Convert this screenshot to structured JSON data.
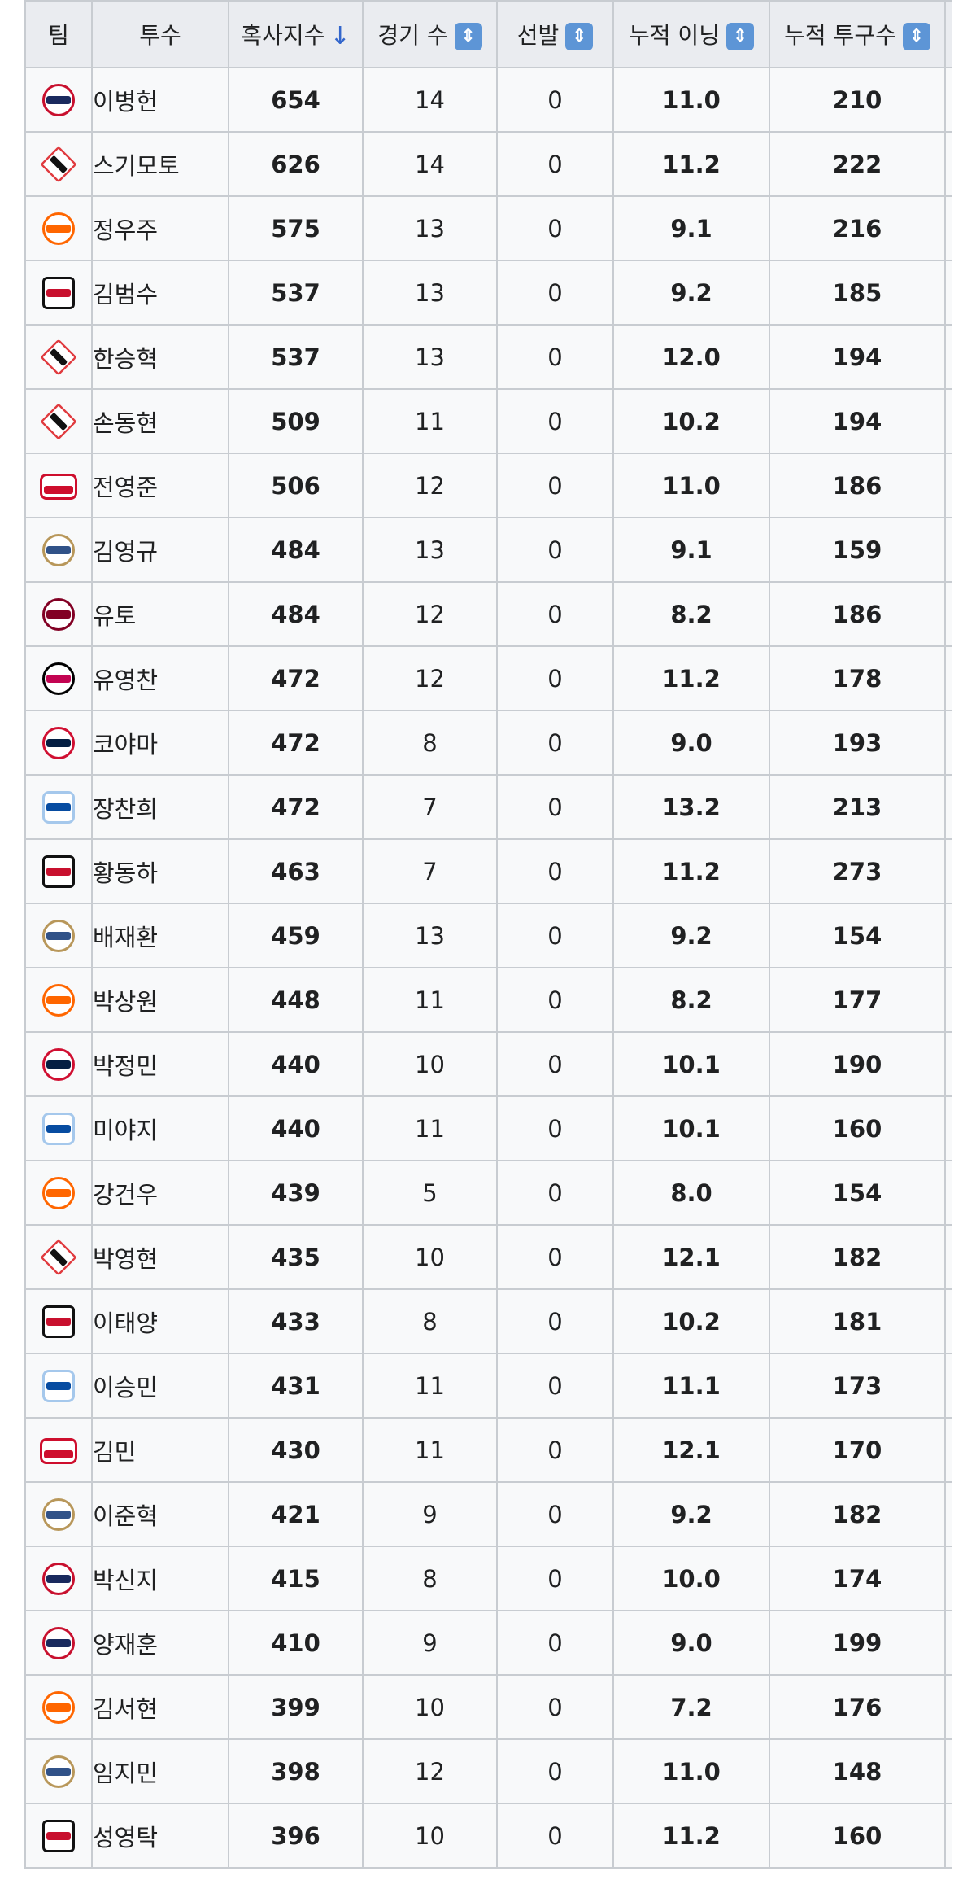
{
  "table": {
    "headers": {
      "team": "팀",
      "pitcher": "투수",
      "index": "혹사지수",
      "games": "경기 수",
      "starts": "선발",
      "innings": "누적 이닝",
      "pitches": "누적 투구수"
    },
    "icons": {
      "sort_active": "arrow-down-icon",
      "sort_toggle": "sort-up-down-icon"
    },
    "colors": {
      "index": "#b22222",
      "innings": "#3366bb",
      "pitches": "#228b3a",
      "header_bg": "#eaecf0"
    },
    "rows": [
      {
        "team_logo": "bears-logo",
        "pitcher": "이병헌",
        "index": "654",
        "games": "14",
        "starts": "0",
        "innings": "11.0",
        "pitches": "210"
      },
      {
        "team_logo": "kt-wiz-logo",
        "pitcher": "스기모토",
        "index": "626",
        "games": "14",
        "starts": "0",
        "innings": "11.2",
        "pitches": "222"
      },
      {
        "team_logo": "eagles-logo",
        "pitcher": "정우주",
        "index": "575",
        "games": "13",
        "starts": "0",
        "innings": "9.1",
        "pitches": "216"
      },
      {
        "team_logo": "tigers-logo",
        "pitcher": "김범수",
        "index": "537",
        "games": "13",
        "starts": "0",
        "innings": "9.2",
        "pitches": "185"
      },
      {
        "team_logo": "kt-wiz-logo",
        "pitcher": "한승혁",
        "index": "537",
        "games": "13",
        "starts": "0",
        "innings": "12.0",
        "pitches": "194"
      },
      {
        "team_logo": "kt-wiz-logo",
        "pitcher": "손동현",
        "index": "509",
        "games": "11",
        "starts": "0",
        "innings": "10.2",
        "pitches": "194"
      },
      {
        "team_logo": "landers-logo",
        "pitcher": "전영준",
        "index": "506",
        "games": "12",
        "starts": "0",
        "innings": "11.0",
        "pitches": "186"
      },
      {
        "team_logo": "dinos-logo",
        "pitcher": "김영규",
        "index": "484",
        "games": "13",
        "starts": "0",
        "innings": "9.1",
        "pitches": "159"
      },
      {
        "team_logo": "kiwoom-logo",
        "pitcher": "유토",
        "index": "484",
        "games": "12",
        "starts": "0",
        "innings": "8.2",
        "pitches": "186"
      },
      {
        "team_logo": "twins-logo",
        "pitcher": "유영찬",
        "index": "472",
        "games": "12",
        "starts": "0",
        "innings": "11.2",
        "pitches": "178"
      },
      {
        "team_logo": "giants-logo",
        "pitcher": "코야마",
        "index": "472",
        "games": "8",
        "starts": "0",
        "innings": "9.0",
        "pitches": "193"
      },
      {
        "team_logo": "lions-logo",
        "pitcher": "장찬희",
        "index": "472",
        "games": "7",
        "starts": "0",
        "innings": "13.2",
        "pitches": "213"
      },
      {
        "team_logo": "tigers-logo",
        "pitcher": "황동하",
        "index": "463",
        "games": "7",
        "starts": "0",
        "innings": "11.2",
        "pitches": "273"
      },
      {
        "team_logo": "dinos-logo",
        "pitcher": "배재환",
        "index": "459",
        "games": "13",
        "starts": "0",
        "innings": "9.2",
        "pitches": "154"
      },
      {
        "team_logo": "eagles-logo",
        "pitcher": "박상원",
        "index": "448",
        "games": "11",
        "starts": "0",
        "innings": "8.2",
        "pitches": "177"
      },
      {
        "team_logo": "giants-logo",
        "pitcher": "박정민",
        "index": "440",
        "games": "10",
        "starts": "0",
        "innings": "10.1",
        "pitches": "190"
      },
      {
        "team_logo": "lions-logo",
        "pitcher": "미야지",
        "index": "440",
        "games": "11",
        "starts": "0",
        "innings": "10.1",
        "pitches": "160"
      },
      {
        "team_logo": "eagles-logo",
        "pitcher": "강건우",
        "index": "439",
        "games": "5",
        "starts": "0",
        "innings": "8.0",
        "pitches": "154"
      },
      {
        "team_logo": "kt-wiz-logo",
        "pitcher": "박영현",
        "index": "435",
        "games": "10",
        "starts": "0",
        "innings": "12.1",
        "pitches": "182"
      },
      {
        "team_logo": "tigers-logo",
        "pitcher": "이태양",
        "index": "433",
        "games": "8",
        "starts": "0",
        "innings": "10.2",
        "pitches": "181"
      },
      {
        "team_logo": "lions-logo",
        "pitcher": "이승민",
        "index": "431",
        "games": "11",
        "starts": "0",
        "innings": "11.1",
        "pitches": "173"
      },
      {
        "team_logo": "landers-logo",
        "pitcher": "김민",
        "index": "430",
        "games": "11",
        "starts": "0",
        "innings": "12.1",
        "pitches": "170"
      },
      {
        "team_logo": "dinos-logo",
        "pitcher": "이준혁",
        "index": "421",
        "games": "9",
        "starts": "0",
        "innings": "9.2",
        "pitches": "182"
      },
      {
        "team_logo": "bears-logo",
        "pitcher": "박신지",
        "index": "415",
        "games": "8",
        "starts": "0",
        "innings": "10.0",
        "pitches": "174"
      },
      {
        "team_logo": "bears-logo",
        "pitcher": "양재훈",
        "index": "410",
        "games": "9",
        "starts": "0",
        "innings": "9.0",
        "pitches": "199"
      },
      {
        "team_logo": "eagles-logo",
        "pitcher": "김서현",
        "index": "399",
        "games": "10",
        "starts": "0",
        "innings": "7.2",
        "pitches": "176"
      },
      {
        "team_logo": "dinos-logo",
        "pitcher": "임지민",
        "index": "398",
        "games": "12",
        "starts": "0",
        "innings": "11.0",
        "pitches": "148"
      },
      {
        "team_logo": "tigers-logo",
        "pitcher": "성영탁",
        "index": "396",
        "games": "10",
        "starts": "0",
        "innings": "11.2",
        "pitches": "160"
      }
    ]
  }
}
